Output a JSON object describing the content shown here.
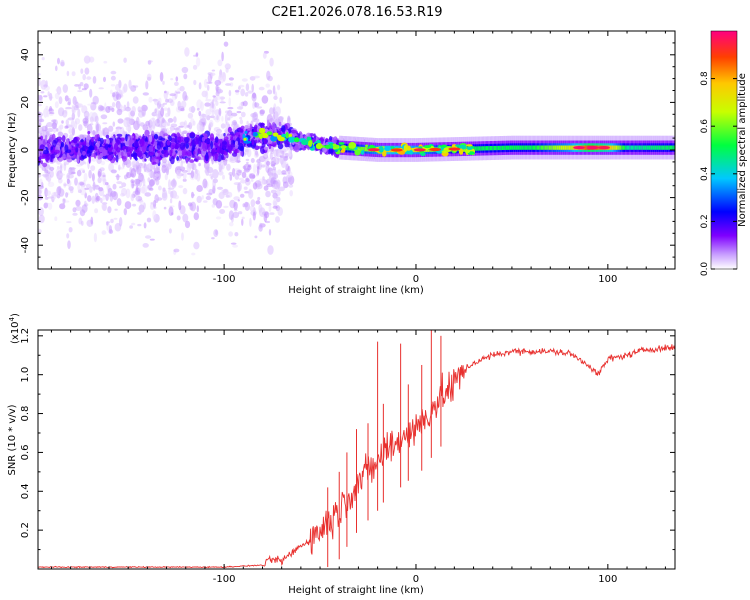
{
  "title": "C2E1.2026.078.16.53.R19",
  "colors": {
    "background": "#ffffff",
    "axis": "#000000",
    "snr_line": "#e8302e"
  },
  "chart_data": [
    {
      "type": "heatmap",
      "name": "spectrogram",
      "xlabel": "Height of straight line (km)",
      "ylabel": "Frequency (Hz)",
      "xlim": [
        -197,
        135
      ],
      "ylim": [
        -50,
        50
      ],
      "xticks": [
        -100,
        0,
        100
      ],
      "yticks": [
        -40,
        -20,
        0,
        20,
        40
      ],
      "colorbar": {
        "label": "Normalized spectral amplitude",
        "range": [
          0,
          1
        ],
        "ticks": [
          0.0,
          0.2,
          0.4,
          0.6,
          0.8
        ],
        "colormap": [
          "#ffffff",
          "#c9a0ff",
          "#7f00ff",
          "#0000ff",
          "#00c8ff",
          "#00ff40",
          "#c8ff00",
          "#ffc800",
          "#ff4000",
          "#ff0080"
        ]
      },
      "centerline_segments": [
        {
          "x": -197,
          "f": 0
        },
        {
          "x": -150,
          "f": 1
        },
        {
          "x": -100,
          "f": 1
        },
        {
          "x": -85,
          "f": 6
        },
        {
          "x": -70,
          "f": 6
        },
        {
          "x": -55,
          "f": 3
        },
        {
          "x": -40,
          "f": 1
        },
        {
          "x": -20,
          "f": 0
        },
        {
          "x": 0,
          "f": 0
        },
        {
          "x": 50,
          "f": 1
        },
        {
          "x": 100,
          "f": 1
        },
        {
          "x": 135,
          "f": 1
        }
      ],
      "amplitude_profile": [
        {
          "x": -197,
          "a": 0.2
        },
        {
          "x": -90,
          "a": 0.3
        },
        {
          "x": -60,
          "a": 0.4
        },
        {
          "x": -30,
          "a": 0.6
        },
        {
          "x": -15,
          "a": 0.75
        },
        {
          "x": 0,
          "a": 0.7
        },
        {
          "x": 20,
          "a": 0.55
        },
        {
          "x": 60,
          "a": 0.55
        },
        {
          "x": 80,
          "a": 0.7
        },
        {
          "x": 90,
          "a": 0.9
        },
        {
          "x": 100,
          "a": 0.8
        },
        {
          "x": 110,
          "a": 0.5
        },
        {
          "x": 135,
          "a": 0.55
        }
      ]
    },
    {
      "type": "line",
      "name": "snr",
      "xlabel": "Height of straight line (km)",
      "ylabel": "SNR (10 * v/v)",
      "scale_label": "(x10",
      "scale_exponent": "4",
      "scale_close": ")",
      "xlim": [
        -197,
        135
      ],
      "ylim": [
        0,
        1.23
      ],
      "xticks": [
        -100,
        0,
        100
      ],
      "yticks": [
        0.2,
        0.4,
        0.6,
        0.8,
        1.0,
        1.2
      ],
      "series": [
        {
          "name": "SNR",
          "x": [
            -197,
            -180,
            -160,
            -140,
            -120,
            -100,
            -90,
            -80,
            -75,
            -70,
            -65,
            -60,
            -55,
            -50,
            -45,
            -40,
            -35,
            -30,
            -25,
            -20,
            -15,
            -10,
            -5,
            0,
            5,
            10,
            15,
            20,
            25,
            30,
            40,
            50,
            60,
            70,
            80,
            90,
            95,
            100,
            110,
            120,
            135
          ],
          "y": [
            0.01,
            0.01,
            0.01,
            0.01,
            0.01,
            0.01,
            0.015,
            0.02,
            0.05,
            0.04,
            0.08,
            0.12,
            0.15,
            0.2,
            0.25,
            0.3,
            0.38,
            0.45,
            0.5,
            0.55,
            0.62,
            0.65,
            0.7,
            0.72,
            0.78,
            0.85,
            0.9,
            0.95,
            1.02,
            1.06,
            1.1,
            1.12,
            1.12,
            1.12,
            1.11,
            1.05,
            1.0,
            1.08,
            1.1,
            1.13,
            1.14
          ],
          "spikes": [
            {
              "x": -46,
              "y": 0.42
            },
            {
              "x": -40,
              "y": 0.5
            },
            {
              "x": -36,
              "y": 0.6
            },
            {
              "x": -31,
              "y": 0.72
            },
            {
              "x": -25,
              "y": 0.75
            },
            {
              "x": -20,
              "y": 1.17
            },
            {
              "x": -17,
              "y": 0.85
            },
            {
              "x": -8,
              "y": 1.16
            },
            {
              "x": -4,
              "y": 0.95
            },
            {
              "x": 3,
              "y": 1.05
            },
            {
              "x": 8,
              "y": 1.23
            },
            {
              "x": 13,
              "y": 1.2
            }
          ]
        }
      ]
    }
  ]
}
